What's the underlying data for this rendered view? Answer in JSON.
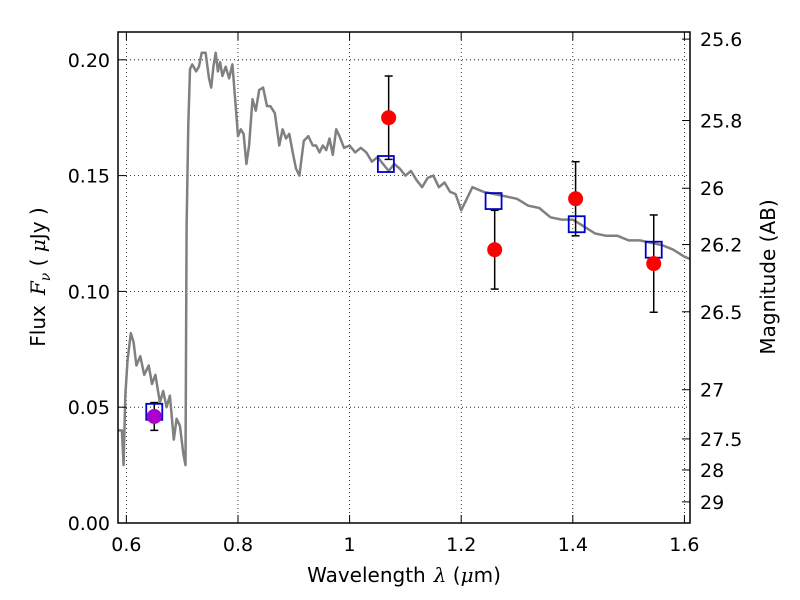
{
  "chart_data": {
    "type": "scatter",
    "xlabel_text": "Wavelength",
    "xlabel_symbol": "λ",
    "xlabel_unit_open": " (",
    "xlabel_unit_mu": "μ",
    "xlabel_unit_rest": "m)",
    "ylabel_text": "Flux",
    "ylabel_symbol": "F",
    "ylabel_sub": "ν",
    "ylabel_unit_open": " ( ",
    "ylabel_unit_mu": "μ",
    "ylabel_unit_rest": "Jy )",
    "y2label": "Magnitude (AB)",
    "xlim": [
      0.585,
      1.61
    ],
    "ylim": [
      0.0,
      0.212
    ],
    "xticks": [
      {
        "value": 0.6,
        "label": "0.6"
      },
      {
        "value": 0.8,
        "label": "0.8"
      },
      {
        "value": 1.0,
        "label": "1"
      },
      {
        "value": 1.2,
        "label": "1.2"
      },
      {
        "value": 1.4,
        "label": "1.4"
      },
      {
        "value": 1.6,
        "label": "1.6"
      }
    ],
    "yticks": [
      {
        "value": 0.0,
        "label": "0.00"
      },
      {
        "value": 0.05,
        "label": "0.05"
      },
      {
        "value": 0.1,
        "label": "0.10"
      },
      {
        "value": 0.15,
        "label": "0.15"
      },
      {
        "value": 0.2,
        "label": "0.20"
      }
    ],
    "y2ticks": [
      {
        "mag": 25.6,
        "label": "25.6"
      },
      {
        "mag": 25.8,
        "label": "25.8"
      },
      {
        "mag": 26.0,
        "label": "26"
      },
      {
        "mag": 26.2,
        "label": "26.2"
      },
      {
        "mag": 26.5,
        "label": "26.5"
      },
      {
        "mag": 27.0,
        "label": "27"
      },
      {
        "mag": 27.5,
        "label": "27.5"
      },
      {
        "mag": 28.0,
        "label": "28"
      },
      {
        "mag": 29.0,
        "label": "29"
      }
    ],
    "grid": true,
    "series": [
      {
        "kind": "model",
        "color": "#808080",
        "x": [
          0.585,
          0.592,
          0.595,
          0.598,
          0.602,
          0.608,
          0.613,
          0.618,
          0.625,
          0.632,
          0.64,
          0.646,
          0.652,
          0.66,
          0.666,
          0.672,
          0.678,
          0.685,
          0.69,
          0.696,
          0.702,
          0.706,
          0.708,
          0.711,
          0.714,
          0.718,
          0.725,
          0.73,
          0.735,
          0.742,
          0.748,
          0.752,
          0.756,
          0.76,
          0.764,
          0.768,
          0.772,
          0.778,
          0.784,
          0.79,
          0.796,
          0.8,
          0.805,
          0.81,
          0.815,
          0.82,
          0.826,
          0.832,
          0.838,
          0.845,
          0.852,
          0.858,
          0.866,
          0.874,
          0.88,
          0.886,
          0.892,
          0.898,
          0.904,
          0.91,
          0.918,
          0.926,
          0.934,
          0.94,
          0.946,
          0.952,
          0.958,
          0.964,
          0.97,
          0.976,
          0.982,
          0.99,
          1.0,
          1.01,
          1.02,
          1.03,
          1.04,
          1.05,
          1.06,
          1.07,
          1.08,
          1.09,
          1.1,
          1.11,
          1.12,
          1.13,
          1.14,
          1.15,
          1.16,
          1.17,
          1.18,
          1.19,
          1.2,
          1.21,
          1.22,
          1.23,
          1.24,
          1.26,
          1.28,
          1.3,
          1.32,
          1.34,
          1.36,
          1.38,
          1.4,
          1.42,
          1.44,
          1.46,
          1.48,
          1.5,
          1.52,
          1.54,
          1.56,
          1.58,
          1.6,
          1.61
        ],
        "y": [
          0.04,
          0.04,
          0.025,
          0.055,
          0.07,
          0.082,
          0.078,
          0.068,
          0.072,
          0.064,
          0.068,
          0.06,
          0.064,
          0.052,
          0.057,
          0.05,
          0.055,
          0.036,
          0.045,
          0.042,
          0.03,
          0.025,
          0.128,
          0.172,
          0.196,
          0.198,
          0.195,
          0.197,
          0.203,
          0.203,
          0.192,
          0.188,
          0.197,
          0.203,
          0.195,
          0.199,
          0.193,
          0.197,
          0.192,
          0.198,
          0.18,
          0.167,
          0.17,
          0.168,
          0.155,
          0.163,
          0.183,
          0.178,
          0.187,
          0.188,
          0.18,
          0.18,
          0.177,
          0.163,
          0.17,
          0.166,
          0.168,
          0.16,
          0.153,
          0.15,
          0.165,
          0.167,
          0.163,
          0.163,
          0.16,
          0.163,
          0.161,
          0.166,
          0.159,
          0.17,
          0.167,
          0.162,
          0.163,
          0.16,
          0.162,
          0.16,
          0.156,
          0.158,
          0.155,
          0.152,
          0.155,
          0.153,
          0.15,
          0.152,
          0.148,
          0.145,
          0.149,
          0.15,
          0.145,
          0.147,
          0.143,
          0.142,
          0.135,
          0.14,
          0.145,
          0.144,
          0.143,
          0.142,
          0.141,
          0.14,
          0.137,
          0.136,
          0.132,
          0.131,
          0.131,
          0.128,
          0.125,
          0.124,
          0.124,
          0.122,
          0.122,
          0.121,
          0.12,
          0.118,
          0.115,
          0.114
        ]
      },
      {
        "kind": "observed",
        "color": "#ff0000",
        "x": [
          1.07,
          1.26,
          1.405,
          1.545
        ],
        "y": [
          0.175,
          0.118,
          0.14,
          0.112
        ],
        "yerr": [
          0.018,
          0.017,
          0.016,
          0.021
        ]
      },
      {
        "kind": "observed-optical",
        "color": "#aa00cc",
        "x": [
          0.65
        ],
        "y": [
          0.046
        ],
        "yerr": [
          0.006
        ]
      },
      {
        "kind": "model-photometry",
        "color": "#0000cc",
        "x": [
          0.65,
          1.065,
          1.258,
          1.407,
          1.545
        ],
        "y": [
          0.048,
          0.155,
          0.139,
          0.129,
          0.118
        ]
      }
    ]
  }
}
